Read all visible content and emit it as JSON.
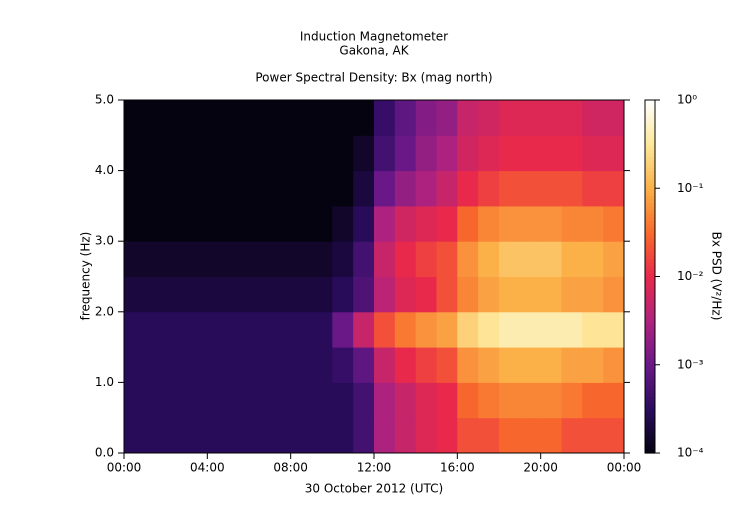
{
  "chart_data": {
    "type": "heatmap",
    "title": "Induction Magnetometer",
    "subtitle": "Gakona, AK",
    "plot_title": "Power Spectral Density: Bx (mag north)",
    "x_label": "30 October 2012 (UTC)",
    "y_label": "frequency (Hz)",
    "colorbar_label": "Bx PSD (V²/Hz)",
    "xlim": [
      0,
      24
    ],
    "xticks": [
      {
        "value": 0,
        "label": "00:00"
      },
      {
        "value": 4,
        "label": "04:00"
      },
      {
        "value": 8,
        "label": "08:00"
      },
      {
        "value": 12,
        "label": "12:00"
      },
      {
        "value": 16,
        "label": "16:00"
      },
      {
        "value": 20,
        "label": "20:00"
      },
      {
        "value": 24,
        "label": "00:00"
      }
    ],
    "ylim": [
      0,
      5
    ],
    "yticks": [
      {
        "value": 0,
        "label": "0.0"
      },
      {
        "value": 1,
        "label": "1.0"
      },
      {
        "value": 2,
        "label": "2.0"
      },
      {
        "value": 3,
        "label": "3.0"
      },
      {
        "value": 4,
        "label": "4.0"
      },
      {
        "value": 5,
        "label": "5.0"
      }
    ],
    "clim": [
      0.0001,
      1
    ],
    "color_scale": "log",
    "cticks": [
      {
        "value": 0.0001,
        "label": "10⁻⁴"
      },
      {
        "value": 0.001,
        "label": "10⁻³"
      },
      {
        "value": 0.01,
        "label": "10⁻²"
      },
      {
        "value": 0.1,
        "label": "10⁻¹"
      },
      {
        "value": 1,
        "label": "10⁰"
      }
    ],
    "colormap": [
      "#050310",
      "#2a0c5e",
      "#6a1888",
      "#b0237e",
      "#e8294c",
      "#f86a2c",
      "#fbb048",
      "#fde79a",
      "#ffffff"
    ],
    "xbins": [
      0,
      1,
      2,
      3,
      4,
      5,
      6,
      7,
      8,
      9,
      10,
      11,
      12,
      13,
      14,
      15,
      16,
      17,
      18,
      19,
      20,
      21,
      22,
      23,
      24
    ],
    "ybins": [
      0,
      0.5,
      1,
      1.5,
      2,
      2.5,
      3,
      3.5,
      4,
      4.5,
      5
    ],
    "z": [
      [
        0.0003,
        0.0003,
        0.0003,
        0.0003,
        0.0003,
        0.0003,
        0.0003,
        0.0003,
        0.0003,
        0.0003,
        0.0003,
        0.0005,
        0.003,
        0.005,
        0.008,
        0.01,
        0.02,
        0.02,
        0.03,
        0.03,
        0.03,
        0.02,
        0.02,
        0.02
      ],
      [
        0.0003,
        0.0003,
        0.0003,
        0.0003,
        0.0003,
        0.0003,
        0.0003,
        0.0003,
        0.0003,
        0.0003,
        0.0003,
        0.0005,
        0.003,
        0.005,
        0.008,
        0.01,
        0.03,
        0.04,
        0.05,
        0.05,
        0.05,
        0.04,
        0.03,
        0.03
      ],
      [
        0.0003,
        0.0003,
        0.0003,
        0.0003,
        0.0003,
        0.0003,
        0.0003,
        0.0003,
        0.0003,
        0.0003,
        0.0004,
        0.0008,
        0.005,
        0.01,
        0.015,
        0.02,
        0.06,
        0.08,
        0.1,
        0.1,
        0.1,
        0.08,
        0.08,
        0.06
      ],
      [
        0.0003,
        0.0003,
        0.0003,
        0.0003,
        0.0003,
        0.0003,
        0.0003,
        0.0003,
        0.0003,
        0.0003,
        0.001,
        0.005,
        0.02,
        0.04,
        0.06,
        0.08,
        0.2,
        0.3,
        0.4,
        0.4,
        0.4,
        0.4,
        0.3,
        0.3
      ],
      [
        0.0002,
        0.0002,
        0.0002,
        0.0002,
        0.0002,
        0.0002,
        0.0002,
        0.0002,
        0.0002,
        0.0002,
        0.0003,
        0.0006,
        0.004,
        0.008,
        0.01,
        0.02,
        0.05,
        0.08,
        0.1,
        0.1,
        0.1,
        0.08,
        0.08,
        0.06
      ],
      [
        0.00015,
        0.00015,
        0.00015,
        0.00015,
        0.00015,
        0.00015,
        0.00015,
        0.00015,
        0.00015,
        0.00015,
        0.0002,
        0.0005,
        0.005,
        0.01,
        0.015,
        0.02,
        0.06,
        0.1,
        0.15,
        0.15,
        0.15,
        0.1,
        0.1,
        0.08
      ],
      [
        0.0001,
        0.0001,
        0.0001,
        0.0001,
        0.0001,
        0.0001,
        0.0001,
        0.0001,
        0.0001,
        0.0001,
        0.00015,
        0.0003,
        0.003,
        0.006,
        0.008,
        0.01,
        0.03,
        0.05,
        0.06,
        0.06,
        0.06,
        0.05,
        0.05,
        0.04
      ],
      [
        0.0001,
        0.0001,
        0.0001,
        0.0001,
        0.0001,
        0.0001,
        0.0001,
        0.0001,
        0.0001,
        0.0001,
        0.0001,
        0.0002,
        0.001,
        0.002,
        0.003,
        0.005,
        0.01,
        0.015,
        0.02,
        0.02,
        0.02,
        0.02,
        0.015,
        0.015
      ],
      [
        0.0001,
        0.0001,
        0.0001,
        0.0001,
        0.0001,
        0.0001,
        0.0001,
        0.0001,
        0.0001,
        0.0001,
        0.0001,
        0.00015,
        0.0005,
        0.001,
        0.002,
        0.003,
        0.006,
        0.008,
        0.01,
        0.01,
        0.01,
        0.01,
        0.008,
        0.008
      ],
      [
        0.0001,
        0.0001,
        0.0001,
        0.0001,
        0.0001,
        0.0001,
        0.0001,
        0.0001,
        0.0001,
        0.0001,
        0.0001,
        0.0001,
        0.0004,
        0.0008,
        0.0015,
        0.002,
        0.005,
        0.006,
        0.008,
        0.008,
        0.008,
        0.008,
        0.006,
        0.006
      ]
    ]
  }
}
